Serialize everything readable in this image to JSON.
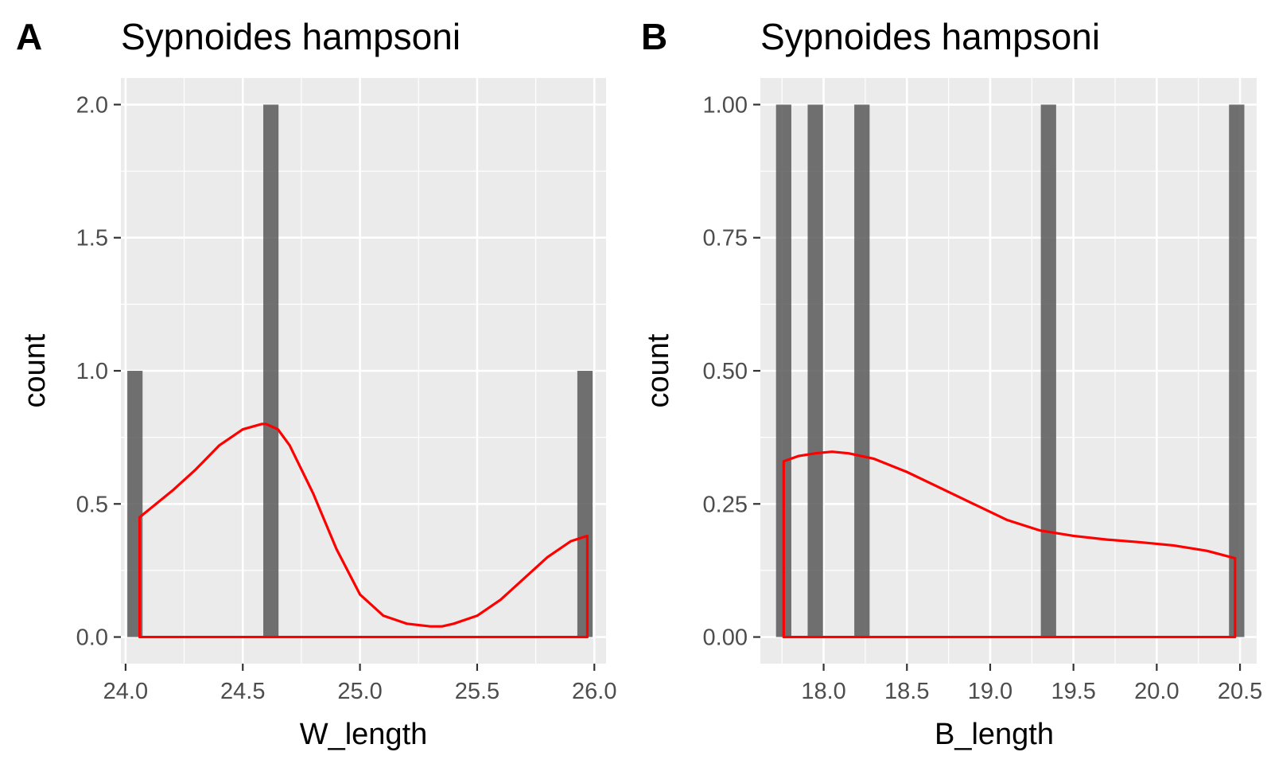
{
  "colors": {
    "panel_background": "#ebebeb",
    "grid": "#ffffff",
    "bar_fill": "#595959",
    "bar_opacity": 0.85,
    "density_line": "#ff0000",
    "tick_text": "#4d4d4d"
  },
  "chart_data": [
    {
      "type": "bar",
      "panel_label": "A",
      "title": "Sypnoides hampsoni",
      "xlabel": "W_length",
      "ylabel": "count",
      "xlim": [
        23.98,
        26.05
      ],
      "ylim": [
        -0.1,
        2.1
      ],
      "x_ticks": [
        24.0,
        24.5,
        25.0,
        25.5,
        26.0
      ],
      "x_tick_labels": [
        "24.0",
        "24.5",
        "25.0",
        "25.5",
        "26.0"
      ],
      "y_ticks": [
        0.0,
        0.5,
        1.0,
        1.5,
        2.0
      ],
      "y_tick_labels": [
        "0.0",
        "0.5",
        "1.0",
        "1.5",
        "2.0"
      ],
      "grid": true,
      "bar_width": 0.065,
      "bars": [
        {
          "x": 24.04,
          "count": 1
        },
        {
          "x": 24.62,
          "count": 2
        },
        {
          "x": 25.96,
          "count": 1
        }
      ],
      "density": {
        "x": [
          24.06,
          24.13,
          24.2,
          24.3,
          24.4,
          24.5,
          24.58,
          24.6,
          24.65,
          24.7,
          24.8,
          24.9,
          25.0,
          25.1,
          25.2,
          25.3,
          25.35,
          25.4,
          25.5,
          25.6,
          25.7,
          25.8,
          25.9,
          25.97
        ],
        "y": [
          0.45,
          0.5,
          0.55,
          0.63,
          0.72,
          0.78,
          0.8,
          0.8,
          0.78,
          0.72,
          0.54,
          0.33,
          0.16,
          0.08,
          0.05,
          0.04,
          0.04,
          0.05,
          0.08,
          0.14,
          0.22,
          0.3,
          0.36,
          0.38
        ]
      }
    },
    {
      "type": "bar",
      "panel_label": "B",
      "title": "Sypnoides hampsoni",
      "xlabel": "B_length",
      "ylabel": "count",
      "xlim": [
        17.62,
        20.6
      ],
      "ylim": [
        -0.05,
        1.05
      ],
      "x_ticks": [
        18.0,
        18.5,
        19.0,
        19.5,
        20.0,
        20.5
      ],
      "x_tick_labels": [
        "18.0",
        "18.5",
        "19.0",
        "19.5",
        "20.0",
        "20.5"
      ],
      "y_ticks": [
        0.0,
        0.25,
        0.5,
        0.75,
        1.0
      ],
      "y_tick_labels": [
        "0.00",
        "0.25",
        "0.50",
        "0.75",
        "1.00"
      ],
      "grid": true,
      "bar_width": 0.092,
      "bars": [
        {
          "x": 17.76,
          "count": 1
        },
        {
          "x": 17.95,
          "count": 1
        },
        {
          "x": 18.23,
          "count": 1
        },
        {
          "x": 19.35,
          "count": 1
        },
        {
          "x": 20.48,
          "count": 1
        }
      ],
      "density": {
        "x": [
          17.76,
          17.85,
          17.95,
          18.05,
          18.15,
          18.3,
          18.5,
          18.7,
          18.9,
          19.1,
          19.3,
          19.5,
          19.7,
          19.9,
          20.1,
          20.3,
          20.47
        ],
        "y": [
          0.33,
          0.34,
          0.345,
          0.348,
          0.345,
          0.335,
          0.31,
          0.28,
          0.25,
          0.22,
          0.2,
          0.19,
          0.183,
          0.178,
          0.172,
          0.162,
          0.148
        ]
      }
    }
  ]
}
